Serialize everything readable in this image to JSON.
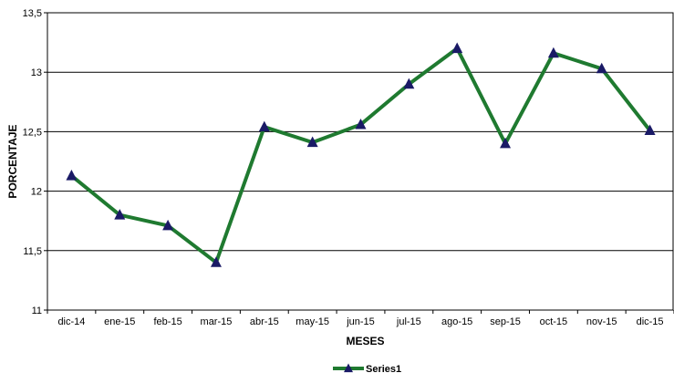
{
  "chart_data": {
    "type": "line",
    "title": "",
    "xlabel": "MESES",
    "ylabel": "PORCENTAJE",
    "categories": [
      "dic-14",
      "ene-15",
      "feb-15",
      "mar-15",
      "abr-15",
      "may-15",
      "jun-15",
      "jul-15",
      "ago-15",
      "sep-15",
      "oct-15",
      "nov-15",
      "dic-15"
    ],
    "series": [
      {
        "name": "Series1",
        "values": [
          12.13,
          11.8,
          11.71,
          11.4,
          12.54,
          12.41,
          12.56,
          12.9,
          13.2,
          12.4,
          13.16,
          13.03,
          12.51
        ],
        "color": "#1f7a30",
        "marker_color": "#1a1a66",
        "marker": "triangle"
      }
    ],
    "ylim": [
      11,
      13.5
    ],
    "yticks": [
      11,
      11.5,
      12,
      12.5,
      13,
      13.5
    ],
    "ytick_labels": [
      "11",
      "11,5",
      "12",
      "12,5",
      "13",
      "13,5"
    ],
    "grid": true,
    "legend": "bottom"
  }
}
